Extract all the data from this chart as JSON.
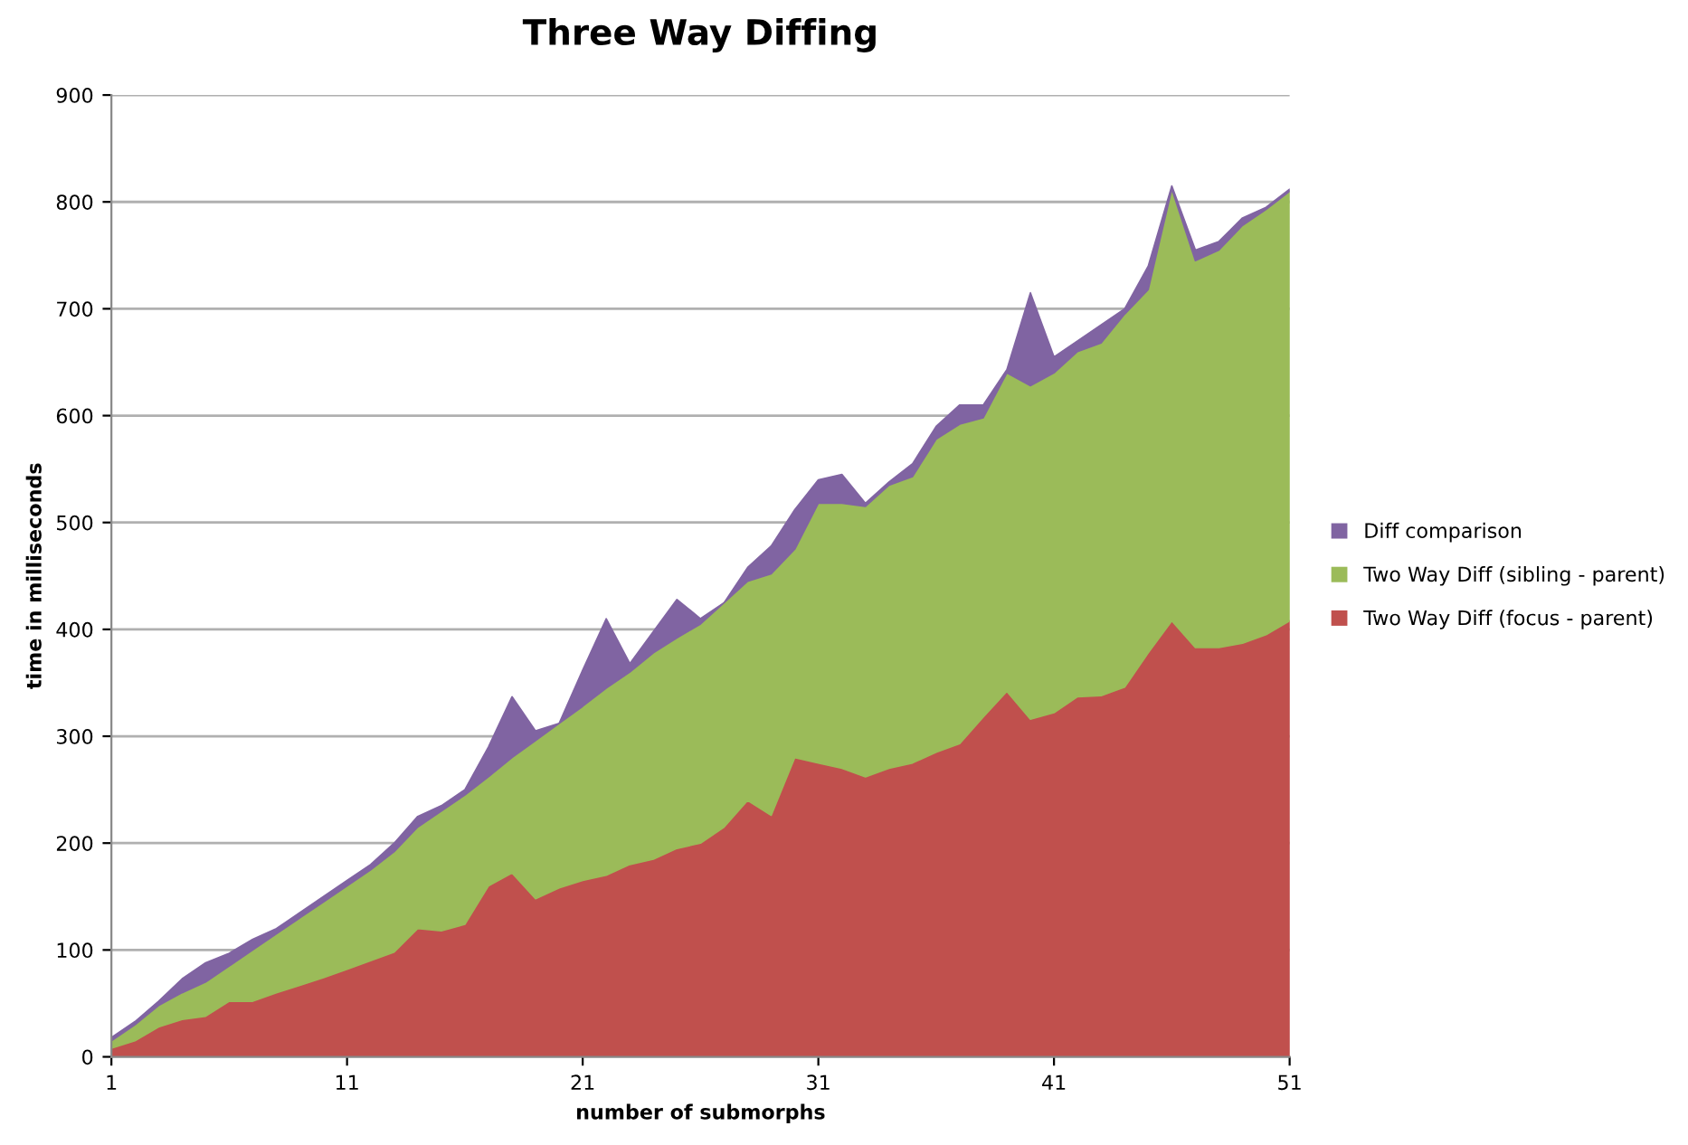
{
  "chart_data": {
    "type": "area",
    "stacked": true,
    "title": "Three Way Diffing",
    "xlabel": "number of submorphs",
    "ylabel": "time in milliseconds",
    "x": [
      1,
      2,
      3,
      4,
      5,
      6,
      7,
      8,
      9,
      10,
      11,
      12,
      13,
      14,
      15,
      16,
      17,
      18,
      19,
      20,
      21,
      22,
      23,
      24,
      25,
      26,
      27,
      28,
      29,
      30,
      31,
      32,
      33,
      34,
      35,
      36,
      37,
      38,
      39,
      40,
      41,
      42,
      43,
      44,
      45,
      46,
      47,
      48,
      49,
      50,
      51
    ],
    "xlim": [
      1,
      51
    ],
    "xticks": [
      1,
      11,
      21,
      31,
      41,
      51
    ],
    "ylim": [
      0,
      900
    ],
    "yticks": [
      0,
      100,
      200,
      300,
      400,
      500,
      600,
      700,
      800,
      900
    ],
    "grid": "y",
    "legend": "right",
    "series": [
      {
        "name": "Two Way Diff (focus - parent)",
        "color": "#c0504d",
        "values": [
          8,
          15,
          28,
          35,
          38,
          52,
          52,
          60,
          67,
          74,
          82,
          90,
          98,
          120,
          118,
          124,
          160,
          172,
          148,
          158,
          165,
          170,
          180,
          185,
          195,
          200,
          215,
          240,
          226,
          280,
          275,
          270,
          262,
          270,
          275,
          285,
          293,
          318,
          342,
          316,
          322,
          337,
          338,
          346,
          378,
          408,
          383,
          383,
          387,
          395,
          408
        ]
      },
      {
        "name": "Two Way Diff (sibling - parent)",
        "color": "#9bbb59",
        "values": [
          7,
          15,
          20,
          25,
          32,
          33,
          48,
          55,
          63,
          71,
          78,
          85,
          94,
          95,
          112,
          121,
          102,
          108,
          148,
          154,
          163,
          175,
          180,
          193,
          197,
          205,
          210,
          205,
          226,
          195,
          243,
          248,
          253,
          265,
          268,
          293,
          299,
          280,
          298,
          312,
          318,
          323,
          330,
          349,
          340,
          404,
          362,
          372,
          391,
          398,
          402
        ]
      },
      {
        "name": "Diff comparison",
        "color": "#8064a2",
        "values": [
          3,
          3,
          4,
          13,
          18,
          12,
          10,
          5,
          5,
          5,
          5,
          5,
          8,
          10,
          5,
          5,
          28,
          57,
          9,
          0,
          34,
          65,
          8,
          20,
          36,
          5,
          0,
          13,
          26,
          37,
          22,
          27,
          3,
          3,
          12,
          12,
          18,
          12,
          3,
          87,
          15,
          10,
          17,
          5,
          22,
          3,
          10,
          8,
          7,
          2,
          2
        ]
      }
    ]
  }
}
